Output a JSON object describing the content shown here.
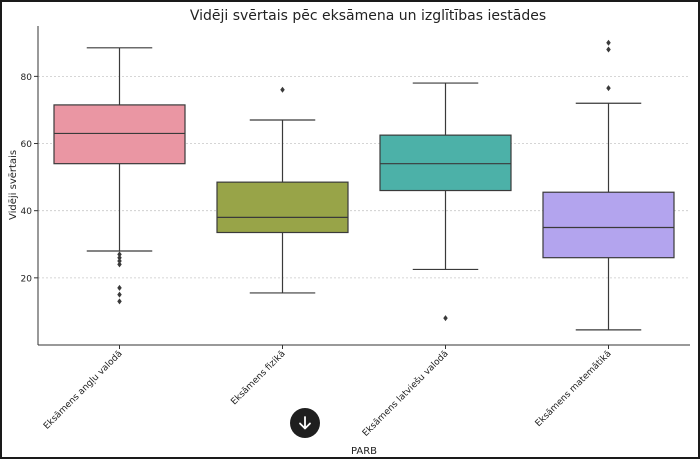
{
  "chart_data": {
    "type": "boxplot",
    "title": "Vidēji svērtais pēc eksāmena un izglītības iestādes",
    "xlabel": "PARB",
    "ylabel": "Vidēji svērtais",
    "ylim": [
      0,
      95
    ],
    "yticks": [
      20,
      40,
      60,
      80
    ],
    "grid": "horizontal-dashed",
    "series": [
      {
        "name": "Eksāmens angļu valodā",
        "color": "#EA96A3",
        "whisker_low": 28,
        "q1": 54,
        "median": 63,
        "q3": 71.5,
        "whisker_high": 88.5,
        "outliers": [
          27,
          26,
          25,
          24,
          17,
          15,
          13
        ]
      },
      {
        "name": "Eksāmens fizikā",
        "color": "#98A448",
        "whisker_low": 15.5,
        "q1": 33.5,
        "median": 38,
        "q3": 48.5,
        "whisker_high": 67,
        "outliers": [
          76
        ]
      },
      {
        "name": "Eksāmens latviešu valodā",
        "color": "#4CB1A8",
        "whisker_low": 22.5,
        "q1": 46,
        "median": 54,
        "q3": 62.5,
        "whisker_high": 78,
        "outliers": [
          8
        ]
      },
      {
        "name": "Eksāmens matemātikā",
        "color": "#B3A4EE",
        "whisker_low": 4.5,
        "q1": 26,
        "median": 35,
        "q3": 45.5,
        "whisker_high": 72,
        "outliers": [
          76.5,
          88,
          90
        ]
      }
    ]
  },
  "ui": {
    "scroll_button_icon": "arrow-down-icon"
  }
}
